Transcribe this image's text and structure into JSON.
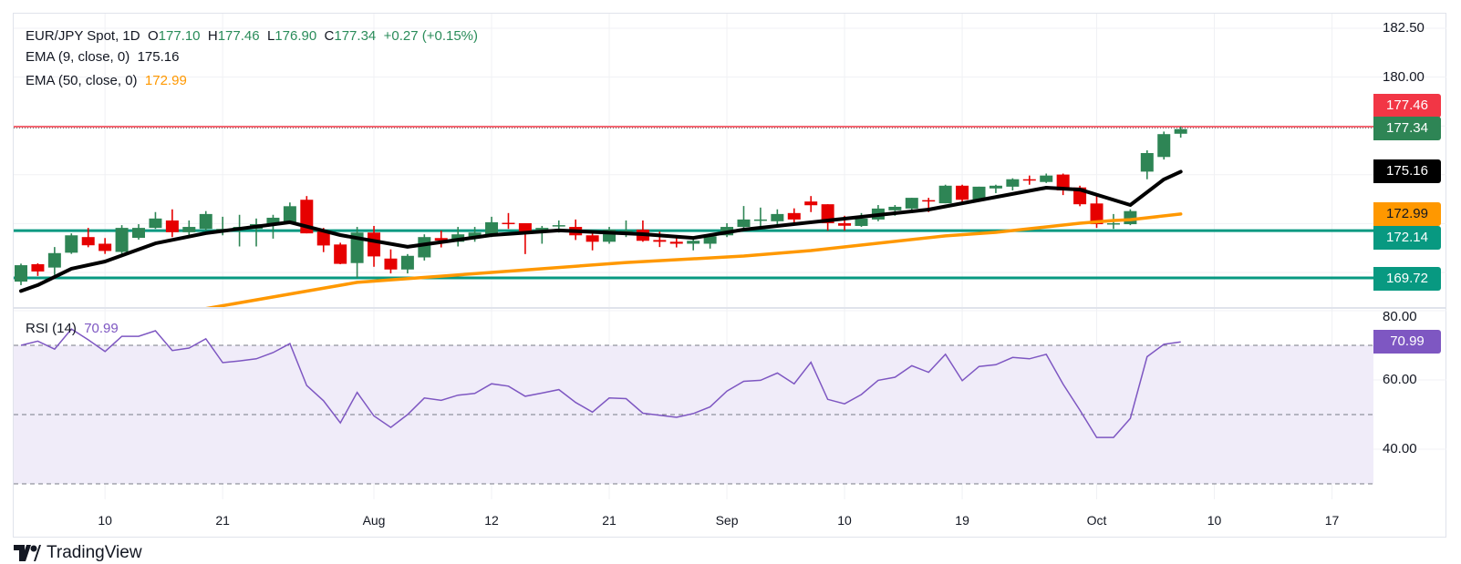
{
  "header": {
    "symbol": "EUR/JPY Spot, 1D",
    "o_label": "O",
    "o": "177.10",
    "h_label": "H",
    "h": "177.46",
    "l_label": "L",
    "l": "176.90",
    "c_label": "C",
    "c": "177.34",
    "change": "+0.27 (+0.15%)"
  },
  "ema9_legend": {
    "label": "EMA (9, close, 0)",
    "value": "175.16"
  },
  "ema50_legend": {
    "label": "EMA (50, close, 0)",
    "value": "172.99"
  },
  "rsi_legend": {
    "label": "RSI (14)",
    "value": "70.99"
  },
  "badges": {
    "high": {
      "value": "177.46",
      "color": "#f23645"
    },
    "last": {
      "value": "177.34",
      "color": "#2e8555"
    },
    "ema9": {
      "value": "175.16",
      "color": "#000000"
    },
    "ema50": {
      "value": "172.99",
      "color": "#ff9800"
    },
    "level1": {
      "value": "172.14",
      "color": "#089981"
    },
    "level2": {
      "value": "169.72",
      "color": "#089981"
    },
    "rsi": {
      "value": "70.99",
      "color": "#7e57c2"
    }
  },
  "logo": {
    "text": "TradingView"
  },
  "colors": {
    "up": "#2e8555",
    "down": "#e60000",
    "ema9": "#000000",
    "ema50": "#ff9800",
    "level": "#089981",
    "high_line": "#f23645",
    "rsi": "#7e57c2",
    "rsi_band": "#f0ecf9",
    "grid": "#f0f1f4"
  },
  "chart_data": [
    {
      "type": "candlestick",
      "title": "EUR/JPY Spot, 1D",
      "ylim": [
        168.2,
        183.25
      ],
      "grid": true,
      "y_gridlines": [
        170,
        172.5,
        175,
        177.5,
        180,
        182.5
      ],
      "y_tick_labels": [
        {
          "value": 182.5,
          "label": "182.50"
        },
        {
          "value": 180,
          "label": "180.00"
        }
      ],
      "x_ticks": [
        {
          "label": "10",
          "date": "07-10"
        },
        {
          "label": "21",
          "date": "07-21"
        },
        {
          "label": "Aug",
          "date": "08-01"
        },
        {
          "label": "12",
          "date": "08-12"
        },
        {
          "label": "21",
          "date": "08-21"
        },
        {
          "label": "Sep",
          "date": "09-01"
        },
        {
          "label": "10",
          "date": "09-10"
        },
        {
          "label": "19",
          "date": "09-19"
        },
        {
          "label": "Oct",
          "date": "10-01"
        },
        {
          "label": "10",
          "date": "10-10"
        },
        {
          "label": "17",
          "date": "10-17"
        }
      ],
      "horizontal_levels": [
        {
          "value": 177.46,
          "style": "dotted",
          "color": "#f23645"
        },
        {
          "value": 172.14,
          "style": "solid",
          "color": "#089981"
        },
        {
          "value": 169.72,
          "style": "solid",
          "color": "#089981"
        }
      ],
      "candles_columns": [
        "date",
        "open",
        "high",
        "low",
        "close"
      ],
      "candles": [
        [
          "07-03",
          169.53,
          170.45,
          169.35,
          170.37
        ],
        [
          "07-04",
          170.42,
          170.47,
          169.82,
          170.05
        ],
        [
          "07-07",
          170.25,
          171.3,
          169.87,
          170.99
        ],
        [
          "07-08",
          171.01,
          172.0,
          170.95,
          171.9
        ],
        [
          "07-09",
          171.81,
          172.28,
          171.29,
          171.39
        ],
        [
          "07-10",
          171.47,
          171.76,
          170.95,
          171.1
        ],
        [
          "07-11",
          171.05,
          172.42,
          170.82,
          172.28
        ],
        [
          "07-14",
          171.77,
          172.47,
          171.68,
          172.28
        ],
        [
          "07-15",
          172.28,
          173.09,
          172.23,
          172.76
        ],
        [
          "07-16",
          172.66,
          173.23,
          171.81,
          172.06
        ],
        [
          "07-17",
          172.06,
          172.66,
          171.9,
          172.33
        ],
        [
          "07-18",
          172.23,
          173.14,
          172.14,
          172.99
        ],
        [
          "07-21",
          172.08,
          172.85,
          171.9,
          172.23
        ],
        [
          "07-22",
          172.23,
          172.95,
          171.33,
          172.33
        ],
        [
          "07-23",
          172.23,
          172.76,
          171.33,
          172.47
        ],
        [
          "07-24",
          172.42,
          172.95,
          171.73,
          172.8
        ],
        [
          "07-25",
          172.57,
          173.58,
          172.47,
          173.39
        ],
        [
          "07-28",
          173.72,
          173.91,
          172.0,
          172.0
        ],
        [
          "07-29",
          172.09,
          172.28,
          171.04,
          171.38
        ],
        [
          "07-30",
          171.43,
          171.52,
          170.42,
          170.44
        ],
        [
          "07-31",
          170.48,
          172.33,
          169.71,
          172.04
        ],
        [
          "08-01",
          172.04,
          172.38,
          170.29,
          170.82
        ],
        [
          "08-04",
          170.71,
          171.18,
          169.95,
          170.15
        ],
        [
          "08-05",
          170.15,
          170.94,
          169.95,
          170.85
        ],
        [
          "08-06",
          170.77,
          171.95,
          170.61,
          171.81
        ],
        [
          "08-07",
          171.76,
          172.14,
          171.28,
          171.63
        ],
        [
          "08-08",
          171.57,
          172.33,
          171.33,
          171.95
        ],
        [
          "08-11",
          171.81,
          172.33,
          171.57,
          172.04
        ],
        [
          "08-12",
          171.9,
          172.85,
          171.81,
          172.57
        ],
        [
          "08-13",
          172.54,
          173.04,
          172.23,
          172.52
        ],
        [
          "08-14",
          172.52,
          172.52,
          170.94,
          172.04
        ],
        [
          "08-15",
          172.09,
          172.38,
          171.47,
          172.28
        ],
        [
          "08-18",
          172.38,
          172.66,
          172.04,
          172.42
        ],
        [
          "08-19",
          172.33,
          172.71,
          171.66,
          171.9
        ],
        [
          "08-20",
          171.9,
          172.0,
          171.13,
          171.57
        ],
        [
          "08-21",
          171.57,
          172.33,
          171.47,
          172.19
        ],
        [
          "08-22",
          172.11,
          172.66,
          171.81,
          172.14
        ],
        [
          "08-25",
          172.19,
          172.66,
          171.57,
          171.62
        ],
        [
          "08-26",
          171.66,
          172.09,
          171.3,
          171.57
        ],
        [
          "08-27",
          171.57,
          171.9,
          171.28,
          171.47
        ],
        [
          "08-28",
          171.47,
          171.76,
          171.13,
          171.62
        ],
        [
          "08-29",
          171.47,
          172.0,
          171.22,
          171.85
        ],
        [
          "09-01",
          171.9,
          172.52,
          171.81,
          172.33
        ],
        [
          "09-02",
          172.33,
          173.4,
          172.28,
          172.71
        ],
        [
          "09-03",
          172.64,
          173.32,
          172.34,
          172.71
        ],
        [
          "09-04",
          172.62,
          173.23,
          172.44,
          172.99
        ],
        [
          "09-05",
          173.04,
          173.28,
          172.47,
          172.71
        ],
        [
          "09-08",
          173.63,
          173.91,
          173.09,
          173.44
        ],
        [
          "09-09",
          173.49,
          173.49,
          172.14,
          172.52
        ],
        [
          "09-10",
          172.52,
          172.9,
          172.14,
          172.39
        ],
        [
          "09-11",
          172.38,
          173.04,
          172.33,
          172.76
        ],
        [
          "09-12",
          172.71,
          173.45,
          172.62,
          173.27
        ],
        [
          "09-15",
          173.18,
          173.45,
          172.9,
          173.36
        ],
        [
          "09-16",
          173.27,
          173.82,
          173.04,
          173.82
        ],
        [
          "09-17",
          173.7,
          173.82,
          173.09,
          173.67
        ],
        [
          "09-18",
          173.54,
          174.49,
          173.54,
          174.44
        ],
        [
          "09-19",
          174.44,
          174.49,
          173.49,
          173.72
        ],
        [
          "09-22",
          173.72,
          174.39,
          173.67,
          174.39
        ],
        [
          "09-23",
          174.3,
          174.49,
          174.06,
          174.44
        ],
        [
          "09-24",
          174.39,
          174.82,
          174.2,
          174.77
        ],
        [
          "09-25",
          174.77,
          174.96,
          174.49,
          174.73
        ],
        [
          "09-26",
          174.63,
          175.06,
          174.58,
          174.96
        ],
        [
          "09-29",
          175.01,
          175.06,
          173.96,
          174.2
        ],
        [
          "09-30",
          174.35,
          174.44,
          173.39,
          173.49
        ],
        [
          "10-01",
          173.53,
          173.91,
          172.28,
          172.47
        ],
        [
          "10-02",
          172.47,
          172.99,
          172.23,
          172.52
        ],
        [
          "10-03",
          172.47,
          173.23,
          172.42,
          173.14
        ],
        [
          "10-06",
          175.16,
          176.25,
          174.77,
          176.11
        ],
        [
          "10-07",
          175.91,
          177.21,
          175.78,
          177.08
        ],
        [
          "10-08",
          177.1,
          177.46,
          176.9,
          177.34
        ]
      ],
      "series": [
        {
          "name": "EMA (9, close, 0)",
          "type": "line",
          "points": [
            [
              "07-03",
              169.05
            ],
            [
              "07-04",
              169.35
            ],
            [
              "07-08",
              170.19
            ],
            [
              "07-10",
              170.56
            ],
            [
              "07-15",
              171.49
            ],
            [
              "07-18",
              172.01
            ],
            [
              "07-25",
              172.57
            ],
            [
              "07-30",
              171.91
            ],
            [
              "08-05",
              171.31
            ],
            [
              "08-12",
              171.91
            ],
            [
              "08-18",
              172.15
            ],
            [
              "08-25",
              171.96
            ],
            [
              "08-28",
              171.77
            ],
            [
              "09-02",
              172.19
            ],
            [
              "09-09",
              172.66
            ],
            [
              "09-17",
              173.22
            ],
            [
              "09-26",
              174.34
            ],
            [
              "09-30",
              174.24
            ],
            [
              "10-03",
              173.45
            ],
            [
              "10-07",
              174.76
            ],
            [
              "10-08",
              175.16
            ]
          ]
        },
        {
          "name": "EMA (50, close, 0)",
          "type": "line",
          "points": [
            [
              "07-17",
              168.0
            ],
            [
              "07-31",
              169.49
            ],
            [
              "08-12",
              170.0
            ],
            [
              "08-22",
              170.51
            ],
            [
              "09-02",
              170.84
            ],
            [
              "09-08",
              171.12
            ],
            [
              "09-18",
              171.87
            ],
            [
              "09-23",
              172.05
            ],
            [
              "09-30",
              172.52
            ],
            [
              "10-02",
              172.66
            ],
            [
              "10-03",
              172.7
            ],
            [
              "10-08",
              172.99
            ]
          ]
        }
      ]
    },
    {
      "type": "line",
      "title": "RSI (14)",
      "ylim": [
        25.5,
        80.8
      ],
      "grid": true,
      "y_gridlines": [
        80,
        60,
        40
      ],
      "y_tick_labels": [
        {
          "value": 80,
          "label": "80.00"
        },
        {
          "value": 60,
          "label": "60.00"
        },
        {
          "value": 40,
          "label": "40.00"
        }
      ],
      "bands": {
        "upper": 70,
        "middle": 50,
        "lower": 30
      },
      "series": [
        {
          "name": "RSI (14)",
          "values": [
            70,
            71.2,
            68.9,
            74.7,
            71.6,
            68.2,
            72.6,
            72.6,
            74.2,
            68.5,
            69.2,
            71.9,
            65,
            65.5,
            66.1,
            67.9,
            70.5,
            58.4,
            54,
            47.6,
            56.4,
            49.6,
            46.3,
            50,
            54.8,
            54.1,
            55.6,
            56.1,
            58.9,
            58.2,
            55.3,
            56.2,
            57.2,
            53.5,
            50.7,
            54.8,
            54.6,
            50.4,
            49.8,
            49.2,
            50.3,
            52.2,
            56.8,
            59.6,
            59.9,
            62,
            58.9,
            65.1,
            54.4,
            53.1,
            55.8,
            59.9,
            60.8,
            64.1,
            62.2,
            67.4,
            59.8,
            63.9,
            64.4,
            66.5,
            66.1,
            67.4,
            58.8,
            51.3,
            43.4,
            43.4,
            48.9,
            66.7,
            70.3,
            70.99
          ]
        }
      ]
    }
  ]
}
